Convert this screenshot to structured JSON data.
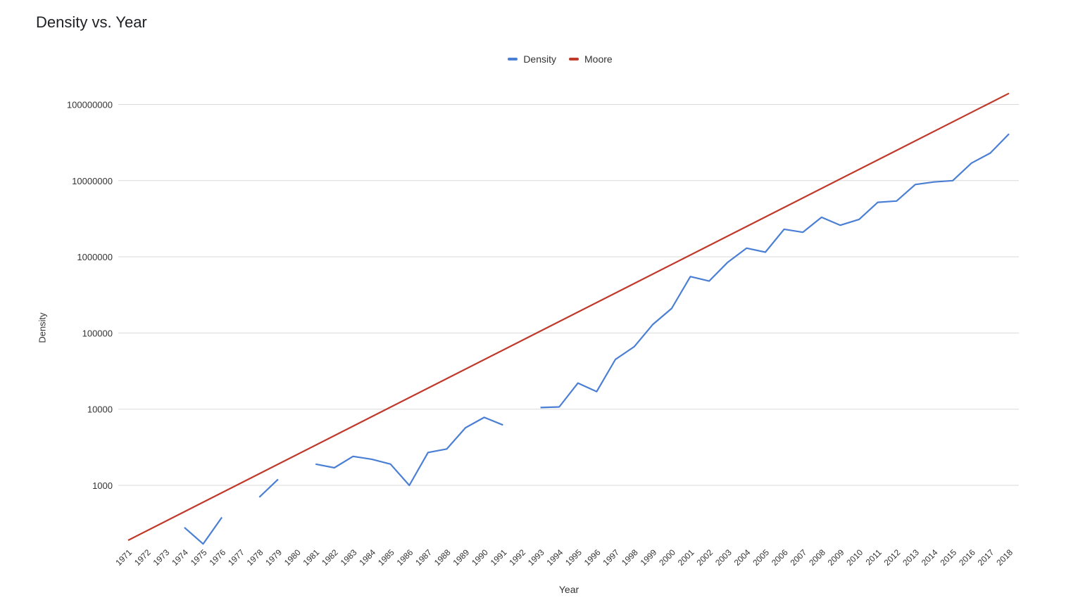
{
  "chart_data": {
    "type": "line",
    "title": "Density vs. Year",
    "xlabel": "Year",
    "ylabel": "Density",
    "yscale": "log",
    "ylim": [
      150,
      150000000
    ],
    "grid": true,
    "legend_position": "top-center",
    "y_ticks": [
      "1000",
      "10000",
      "100000",
      "1000000",
      "10000000",
      "100000000"
    ],
    "categories": [
      "1971",
      "1972",
      "1973",
      "1974",
      "1975",
      "1976",
      "1977",
      "1978",
      "1979",
      "1980",
      "1981",
      "1982",
      "1983",
      "1984",
      "1985",
      "1986",
      "1987",
      "1988",
      "1989",
      "1990",
      "1991",
      "1992",
      "1993",
      "1994",
      "1995",
      "1996",
      "1997",
      "1998",
      "1999",
      "2000",
      "2001",
      "2002",
      "2003",
      "2004",
      "2005",
      "2006",
      "2007",
      "2008",
      "2009",
      "2010",
      "2011",
      "2012",
      "2013",
      "2014",
      "2015",
      "2016",
      "2017",
      "2018"
    ],
    "series": [
      {
        "name": "Density",
        "color": "#4a7fd4",
        "values": [
          null,
          null,
          null,
          280,
          170,
          380,
          null,
          700,
          1200,
          null,
          1900,
          1700,
          2400,
          2200,
          1900,
          1000,
          2700,
          3000,
          5700,
          7800,
          6200,
          null,
          10500,
          10700,
          22000,
          17000,
          45000,
          66000,
          130000,
          210000,
          550000,
          480000,
          850000,
          1300000,
          1150000,
          2300000,
          2100000,
          3300000,
          2600000,
          3100000,
          5200000,
          5400000,
          8900000,
          9600000,
          10000000,
          17000000,
          23000000,
          41000000
        ]
      },
      {
        "name": "Moore",
        "color": "#c0392b",
        "start_value": 190,
        "end_value": 140000000
      }
    ]
  }
}
